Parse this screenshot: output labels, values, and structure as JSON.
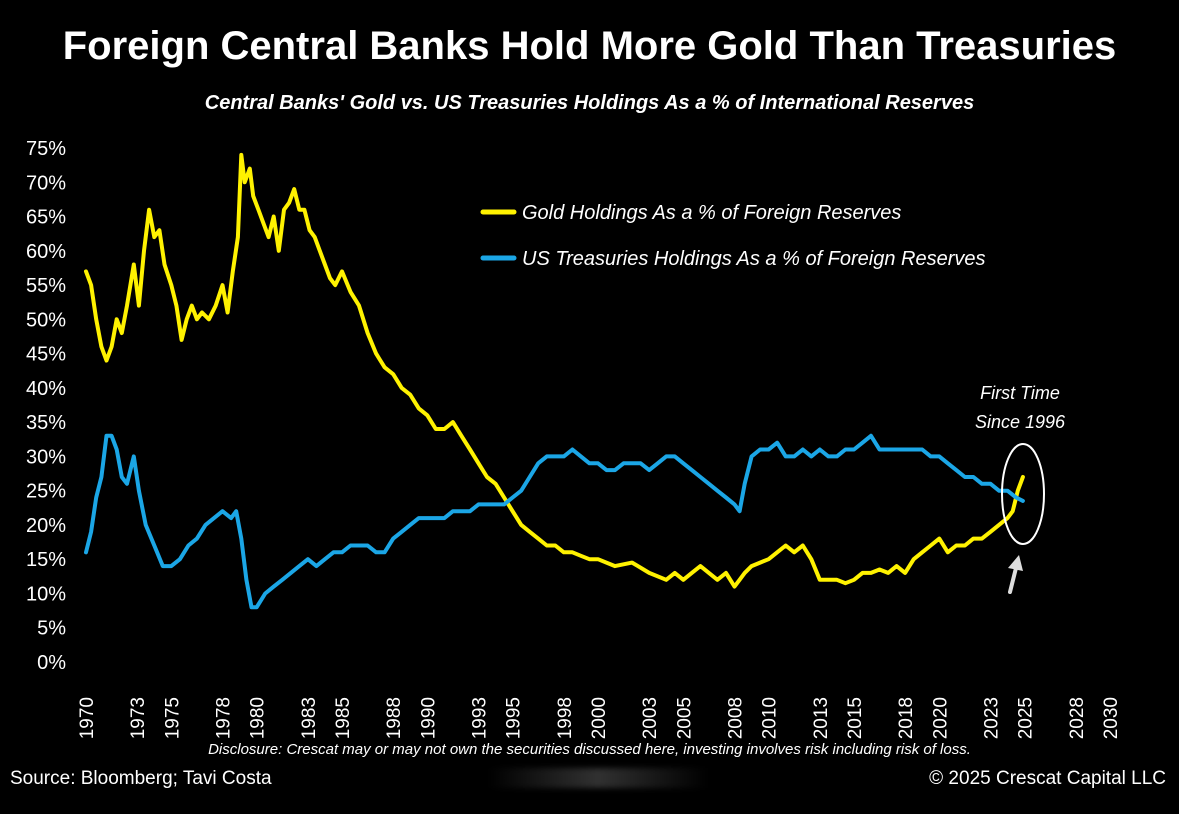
{
  "chart_data": {
    "type": "line",
    "title": "Foreign Central Banks Hold More Gold Than Treasuries",
    "subtitle": "Central Banks' Gold vs. US Treasuries Holdings As a % of International Reserves",
    "xlabel": "",
    "ylabel": "",
    "ylim": [
      0,
      75
    ],
    "xlim": [
      1970,
      2031
    ],
    "y_ticks": [
      "0%",
      "5%",
      "10%",
      "15%",
      "20%",
      "25%",
      "30%",
      "35%",
      "40%",
      "45%",
      "50%",
      "55%",
      "60%",
      "65%",
      "70%",
      "75%"
    ],
    "x_ticks": [
      "1970",
      "1973",
      "1975",
      "1978",
      "1980",
      "1983",
      "1985",
      "1988",
      "1990",
      "1993",
      "1995",
      "1998",
      "2000",
      "2003",
      "2005",
      "2008",
      "2010",
      "2013",
      "2015",
      "2018",
      "2020",
      "2023",
      "2025",
      "2028",
      "2030"
    ],
    "grid": false,
    "legend_placement": "top-right",
    "series": [
      {
        "name": "Gold Holdings As a % of Foreign Reserves",
        "color": "#fff200",
        "x": [
          1970.0,
          1970.3,
          1970.6,
          1970.9,
          1971.2,
          1971.5,
          1971.8,
          1972.1,
          1972.4,
          1972.8,
          1973.1,
          1973.4,
          1973.7,
          1974.0,
          1974.3,
          1974.6,
          1975.0,
          1975.3,
          1975.6,
          1975.9,
          1976.2,
          1976.5,
          1976.8,
          1977.2,
          1977.6,
          1978.0,
          1978.3,
          1978.6,
          1978.9,
          1979.1,
          1979.3,
          1979.6,
          1979.8,
          1980.1,
          1980.4,
          1980.7,
          1981.0,
          1981.3,
          1981.6,
          1981.9,
          1982.2,
          1982.5,
          1982.8,
          1983.1,
          1983.4,
          1983.7,
          1984.0,
          1984.3,
          1984.6,
          1985.0,
          1985.5,
          1986.0,
          1986.5,
          1987.0,
          1987.5,
          1988.0,
          1988.5,
          1989.0,
          1989.5,
          1990.0,
          1990.5,
          1991.0,
          1991.5,
          1992.0,
          1992.5,
          1993.0,
          1993.5,
          1994.0,
          1994.5,
          1995.0,
          1995.5,
          1996.0,
          1996.5,
          1997.0,
          1997.5,
          1998.0,
          1998.5,
          1999.0,
          1999.5,
          2000.0,
          2001.0,
          2002.0,
          2003.0,
          2004.0,
          2004.5,
          2005.0,
          2005.5,
          2006.0,
          2006.5,
          2007.0,
          2007.5,
          2008.0,
          2008.3,
          2008.6,
          2009.0,
          2009.5,
          2010.0,
          2010.5,
          2011.0,
          2011.5,
          2012.0,
          2012.5,
          2013.0,
          2013.5,
          2014.0,
          2014.5,
          2015.0,
          2015.5,
          2016.0,
          2016.5,
          2017.0,
          2017.5,
          2018.0,
          2018.5,
          2019.0,
          2019.5,
          2020.0,
          2020.5,
          2021.0,
          2021.5,
          2022.0,
          2022.5,
          2023.0,
          2023.5,
          2024.0,
          2024.3,
          2024.6,
          2024.9
        ],
        "values": [
          57,
          55,
          50,
          46,
          44,
          46,
          50,
          48,
          52,
          58,
          52,
          60,
          66,
          62,
          63,
          58,
          55,
          52,
          47,
          50,
          52,
          50,
          51,
          50,
          52,
          55,
          51,
          57,
          62,
          74,
          70,
          72,
          68,
          66,
          64,
          62,
          65,
          60,
          66,
          67,
          69,
          66,
          66,
          63,
          62,
          60,
          58,
          56,
          55,
          57,
          54,
          52,
          48,
          45,
          43,
          42,
          40,
          39,
          37,
          36,
          34,
          34,
          35,
          33,
          31,
          29,
          27,
          26,
          24,
          22,
          20,
          19,
          18,
          17,
          17,
          16,
          16,
          15.5,
          15,
          15,
          14,
          14.5,
          13,
          12,
          13,
          12,
          13,
          14,
          13,
          12,
          13,
          11,
          12,
          13,
          14,
          14.5,
          15,
          16,
          17,
          16,
          17,
          15,
          12,
          12,
          12,
          11.5,
          12,
          13,
          13,
          13.5,
          13,
          14,
          13,
          15,
          16,
          17,
          18,
          16,
          17,
          17,
          18,
          18,
          19,
          20,
          21,
          22,
          25,
          27
        ]
      },
      {
        "name": "US Treasuries Holdings As a % of Foreign Reserves",
        "color": "#1ba6e6",
        "x": [
          1970.0,
          1970.3,
          1970.6,
          1970.9,
          1971.2,
          1971.5,
          1971.8,
          1972.1,
          1972.4,
          1972.8,
          1973.1,
          1973.5,
          1974.0,
          1974.5,
          1975.0,
          1975.5,
          1976.0,
          1976.5,
          1977.0,
          1977.5,
          1978.0,
          1978.5,
          1978.8,
          1979.1,
          1979.4,
          1979.7,
          1980.0,
          1980.5,
          1981.0,
          1981.5,
          1982.0,
          1982.5,
          1983.0,
          1983.5,
          1984.0,
          1984.5,
          1985.0,
          1985.5,
          1986.0,
          1986.5,
          1987.0,
          1987.5,
          1988.0,
          1988.5,
          1989.0,
          1989.5,
          1990.0,
          1990.5,
          1991.0,
          1991.5,
          1992.0,
          1992.5,
          1993.0,
          1993.5,
          1994.0,
          1994.5,
          1995.0,
          1995.5,
          1996.0,
          1996.5,
          1997.0,
          1997.5,
          1998.0,
          1998.5,
          1999.0,
          1999.5,
          2000.0,
          2000.5,
          2001.0,
          2001.5,
          2002.0,
          2002.5,
          2003.0,
          2003.5,
          2004.0,
          2004.5,
          2005.0,
          2005.5,
          2006.0,
          2006.5,
          2007.0,
          2007.5,
          2008.0,
          2008.3,
          2008.6,
          2009.0,
          2009.5,
          2010.0,
          2010.5,
          2011.0,
          2011.5,
          2012.0,
          2012.5,
          2013.0,
          2013.5,
          2014.0,
          2014.5,
          2015.0,
          2015.5,
          2016.0,
          2016.5,
          2017.0,
          2017.5,
          2018.0,
          2018.5,
          2019.0,
          2019.5,
          2020.0,
          2020.5,
          2021.0,
          2021.5,
          2022.0,
          2022.5,
          2023.0,
          2023.5,
          2024.0,
          2024.5,
          2024.9
        ],
        "values": [
          16,
          19,
          24,
          27,
          33,
          33,
          31,
          27,
          26,
          30,
          25,
          20,
          17,
          14,
          14,
          15,
          17,
          18,
          20,
          21,
          22,
          21,
          22,
          18,
          12,
          8,
          8,
          10,
          11,
          12,
          13,
          14,
          15,
          14,
          15,
          16,
          16,
          17,
          17,
          17,
          16,
          16,
          18,
          19,
          20,
          21,
          21,
          21,
          21,
          22,
          22,
          22,
          23,
          23,
          23,
          23,
          24,
          25,
          27,
          29,
          30,
          30,
          30,
          31,
          30,
          29,
          29,
          28,
          28,
          29,
          29,
          29,
          28,
          29,
          30,
          30,
          29,
          28,
          27,
          26,
          25,
          24,
          23,
          22,
          26,
          30,
          31,
          31,
          32,
          30,
          30,
          31,
          30,
          31,
          30,
          30,
          31,
          31,
          32,
          33,
          31,
          31,
          31,
          31,
          31,
          31,
          30,
          30,
          29,
          28,
          27,
          27,
          26,
          26,
          25,
          25,
          24,
          23.5
        ]
      }
    ],
    "annotations": [
      "First Time",
      "Since 1996"
    ]
  },
  "footer": {
    "disclosure": "Disclosure: Crescat may or may not own the securities discussed here, investing involves risk including risk of loss.",
    "source": "Source: Bloomberg; Tavi Costa",
    "copyright": "© 2025 Crescat Capital LLC"
  }
}
